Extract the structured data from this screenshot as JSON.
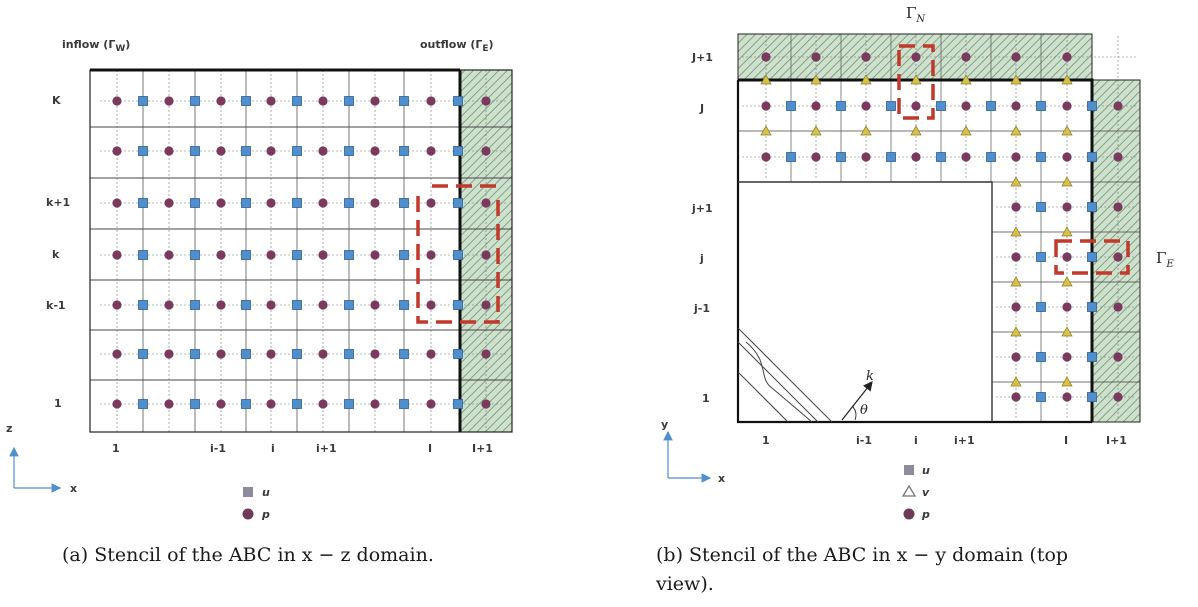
{
  "panel_a": {
    "caption": "(a) Stencil of the ABC in x − z domain.",
    "inflow_label": "inflow (Γ",
    "inflow_sub": "W",
    "outflow_label": "outflow (Γ",
    "outflow_sub": "E",
    "row_labels": [
      "K",
      "k+1",
      "k",
      "k-1",
      "1"
    ],
    "col_labels": [
      "1",
      "i-1",
      "i",
      "i+1",
      "I",
      "I+1"
    ],
    "axis_vertical": "z",
    "axis_horizontal": "x",
    "legend": [
      {
        "symbol": "square",
        "label": "u"
      },
      {
        "symbol": "circle",
        "label": "p"
      }
    ]
  },
  "panel_b": {
    "caption_line1": "(b) Stencil of the ABC in x − y domain (top",
    "caption_line2": "view).",
    "gamma_north": "Γ",
    "gamma_north_sub": "N",
    "gamma_east": "Γ",
    "gamma_east_sub": "E",
    "row_labels": [
      "J+1",
      "J",
      "j+1",
      "j",
      "j-1",
      "1"
    ],
    "col_labels": [
      "1",
      "i-1",
      "i",
      "i+1",
      "I",
      "I+1"
    ],
    "axis_vertical": "y",
    "axis_horizontal": "x",
    "wave_vector": "k",
    "angle": "θ",
    "legend": [
      {
        "symbol": "square",
        "label": "u"
      },
      {
        "symbol": "triangle",
        "label": "v"
      },
      {
        "symbol": "circle",
        "label": "p"
      }
    ]
  },
  "colors": {
    "u": "#4f8fce",
    "v": "#d6c24a",
    "p": "#7a3a5e",
    "highlight": "#c0392b",
    "hatch": "#7fa57f"
  }
}
